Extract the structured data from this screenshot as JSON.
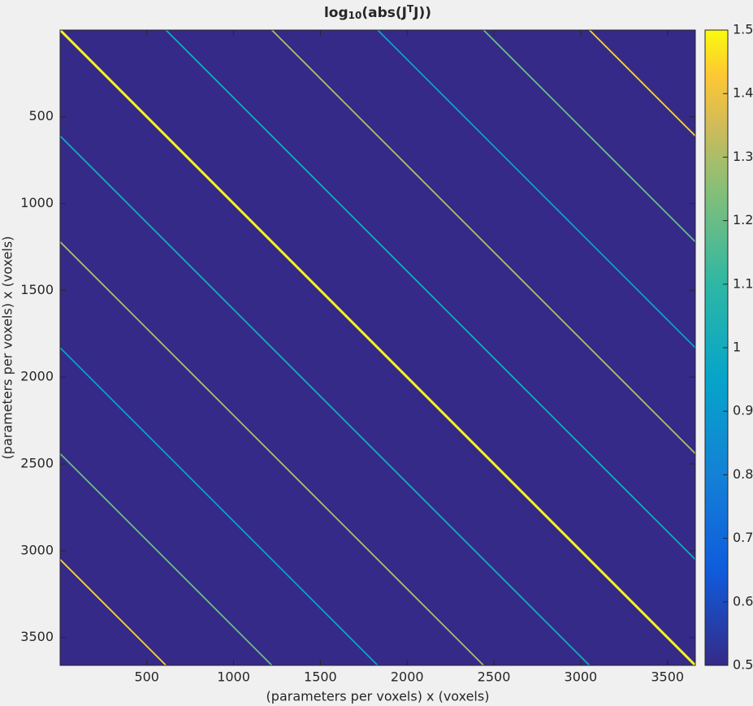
{
  "chart_data": {
    "type": "matrix",
    "title_parts": [
      "log",
      "10",
      "(abs(J",
      "T",
      "J))"
    ],
    "xlabel": "(parameters per voxels) x (voxels)",
    "ylabel": "(parameters per voxels) x (voxels)",
    "xlim": [
      0.5,
      3660.5
    ],
    "ylim": [
      0.5,
      3660.5
    ],
    "xticks": [
      500,
      1000,
      1500,
      2000,
      2500,
      3000,
      3500
    ],
    "yticks": [
      500,
      1000,
      1500,
      2000,
      2500,
      3000,
      3500
    ],
    "clim": [
      0.5,
      1.5
    ],
    "cticks": [
      0.5,
      0.6,
      0.7,
      0.8,
      0.9,
      1,
      1.1,
      1.2,
      1.3,
      1.4,
      1.5
    ],
    "diagonals": [
      {
        "offset": -3050,
        "value": 1.45
      },
      {
        "offset": -2440,
        "value": 1.2
      },
      {
        "offset": -1830,
        "value": 0.95
      },
      {
        "offset": -1220,
        "value": 1.3
      },
      {
        "offset": -610,
        "value": 1.0
      },
      {
        "offset": 0,
        "value": 1.5
      },
      {
        "offset": 610,
        "value": 1.0
      },
      {
        "offset": 1220,
        "value": 1.3
      },
      {
        "offset": 1830,
        "value": 0.95
      },
      {
        "offset": 2440,
        "value": 1.2
      },
      {
        "offset": 3050,
        "value": 1.45
      }
    ]
  }
}
